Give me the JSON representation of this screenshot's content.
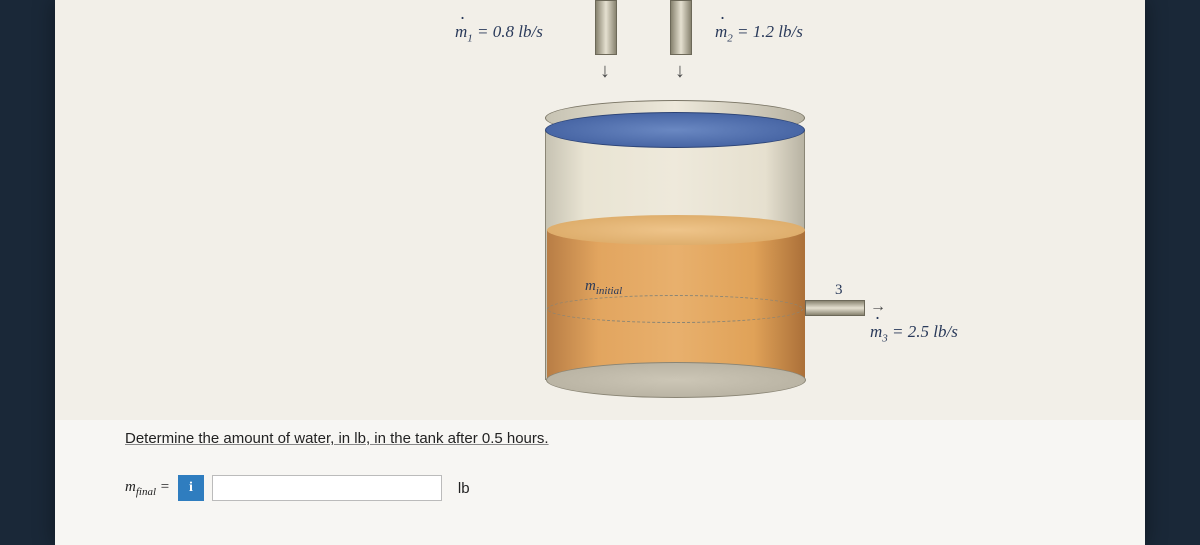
{
  "diagram": {
    "inlet1_label": "ṁ₁ = 0.8 lb/s",
    "inlet2_label": "ṁ₂ = 1.2 lb/s",
    "outlet_label": "ṁ₃ = 2.5 lb/s",
    "outlet_number": "3",
    "initial_label": "m",
    "initial_sub": "initial",
    "tank_colors": {
      "body_light": "#eee9db",
      "body_dark": "#b8b3a3",
      "liquid_light": "#e8b06d",
      "liquid_dark": "#ab7039",
      "top_water": "#3a5899"
    }
  },
  "question": {
    "prompt": "Determine the amount of water, in lb, in the tank after 0.5 hours.",
    "answer_prefix": "m",
    "answer_sub": "final",
    "equals": " = ",
    "unit": "lb",
    "input_value": ""
  }
}
